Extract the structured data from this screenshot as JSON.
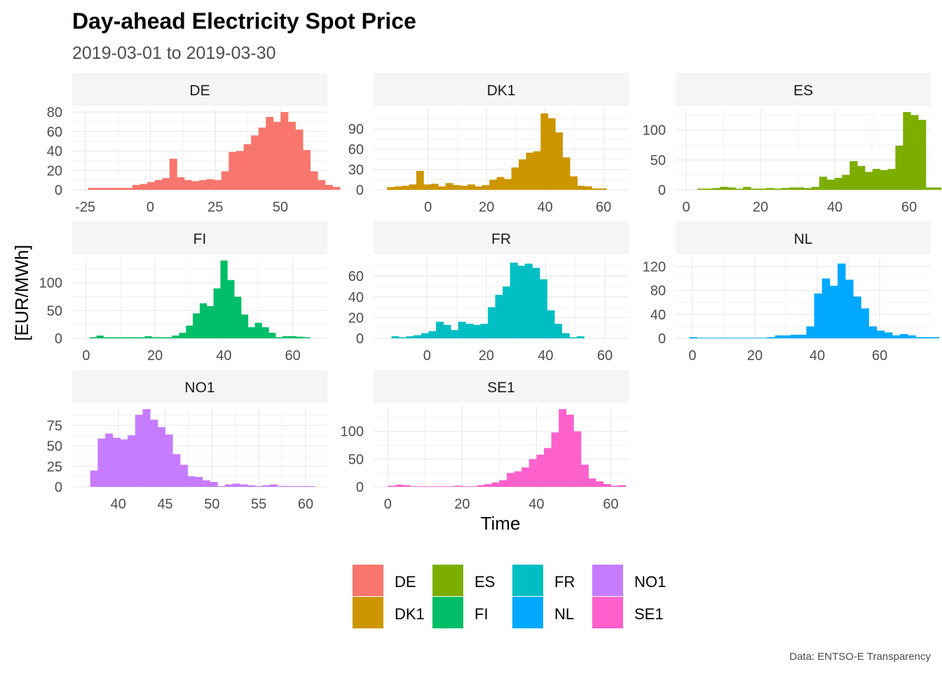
{
  "chart_data": {
    "type": "bar",
    "title": "Day-ahead Electricity Spot Price",
    "subtitle": "2019-03-01 to 2019-03-30",
    "xlabel": "Time",
    "ylabel": "[EUR/MWh]",
    "caption": "Data: ENTSO-E Transparency",
    "legend": {
      "position": "bottom",
      "columns": [
        [
          "DE",
          "DK1"
        ],
        [
          "ES",
          "FI"
        ],
        [
          "FR",
          "NL"
        ],
        [
          "NO1",
          "SE1"
        ]
      ]
    },
    "colors": {
      "DE": "#F8766D",
      "DK1": "#CD9600",
      "ES": "#7CAE00",
      "FI": "#00BE67",
      "FR": "#00BFC4",
      "NL": "#00A9FF",
      "NO1": "#C77CFF",
      "SE1": "#FF61CC"
    },
    "panels": [
      {
        "name": "DE",
        "xlim": [
          -26,
          64
        ],
        "ylim": [
          0,
          80
        ],
        "xticks": [
          -25,
          0,
          25,
          50
        ],
        "yticks": [
          0,
          20,
          40,
          60,
          80
        ],
        "bin_start": -24,
        "bin_width": 2.85,
        "counts": [
          2,
          2,
          2,
          2,
          2,
          2,
          5,
          6,
          8,
          10,
          12,
          32,
          13,
          10,
          9,
          10,
          11,
          10,
          19,
          39,
          40,
          47,
          56,
          64,
          75,
          70,
          80,
          70,
          62,
          41,
          19,
          10,
          5,
          3
        ]
      },
      {
        "name": "DK1",
        "xlim": [
          -15,
          65
        ],
        "ylim": [
          0,
          115
        ],
        "xticks": [
          0,
          20,
          40,
          60
        ],
        "yticks": [
          0,
          30,
          60,
          90
        ],
        "bin_start": -14,
        "bin_width": 2.5,
        "counts": [
          4,
          5,
          6,
          8,
          28,
          8,
          9,
          5,
          10,
          7,
          6,
          8,
          5,
          7,
          15,
          19,
          16,
          33,
          45,
          55,
          57,
          113,
          106,
          85,
          48,
          20,
          6,
          5,
          2,
          2
        ]
      },
      {
        "name": "ES",
        "xlim": [
          0,
          63
        ],
        "ylim": [
          0,
          130
        ],
        "xticks": [
          0,
          20,
          40,
          60
        ],
        "yticks": [
          0,
          50,
          100
        ],
        "bin_start": 3,
        "bin_width": 2.05,
        "counts": [
          2,
          2,
          3,
          5,
          4,
          2,
          5,
          2,
          2,
          3,
          2,
          3,
          4,
          4,
          3,
          5,
          22,
          17,
          20,
          25,
          48,
          40,
          30,
          35,
          33,
          35,
          74,
          130,
          125,
          117,
          4,
          4
        ]
      },
      {
        "name": "FI",
        "xlim": [
          -1,
          67
        ],
        "ylim": [
          0,
          140
        ],
        "xticks": [
          0,
          20,
          40,
          60
        ],
        "yticks": [
          0,
          50,
          100
        ],
        "bin_start": 1,
        "bin_width": 2.0,
        "counts": [
          2,
          5,
          2,
          2,
          2,
          2,
          2,
          2,
          4,
          2,
          2,
          2,
          5,
          10,
          23,
          45,
          63,
          58,
          90,
          140,
          105,
          75,
          43,
          20,
          28,
          20,
          10,
          2,
          4,
          4,
          3,
          2
        ]
      },
      {
        "name": "FR",
        "xlim": [
          -14.5,
          64.5
        ],
        "ylim": [
          0,
          75
        ],
        "xticks": [
          0,
          20,
          40,
          60
        ],
        "yticks": [
          0,
          20,
          40,
          60
        ],
        "bin_start": -12,
        "bin_width": 2.5,
        "counts": [
          2,
          1,
          2,
          3,
          5,
          7,
          16,
          13,
          8,
          16,
          14,
          13,
          14,
          30,
          42,
          50,
          73,
          70,
          72,
          68,
          57,
          27,
          14,
          5,
          1,
          2
        ]
      },
      {
        "name": "NL",
        "xlim": [
          -2,
          73
        ],
        "ylim": [
          0,
          130
        ],
        "xticks": [
          0,
          20,
          40,
          60
        ],
        "yticks": [
          0,
          40,
          80,
          120
        ],
        "bin_start": -1,
        "bin_width": 2.5,
        "counts": [
          2,
          1,
          1,
          1,
          1,
          1,
          1,
          1,
          1,
          1,
          2,
          5,
          5,
          6,
          6,
          20,
          75,
          100,
          88,
          125,
          98,
          70,
          50,
          20,
          13,
          10,
          5,
          7,
          5,
          2,
          2,
          2
        ]
      },
      {
        "name": "NO1",
        "xlim": [
          36.2,
          61.2
        ],
        "ylim": [
          0,
          95
        ],
        "xticks": [
          40,
          45,
          50,
          55,
          60
        ],
        "yticks": [
          0,
          25,
          50,
          75
        ],
        "bin_start": 37.0,
        "bin_width": 0.8,
        "counts": [
          20,
          59,
          65,
          60,
          58,
          63,
          88,
          95,
          82,
          73,
          64,
          40,
          27,
          13,
          12,
          8,
          6,
          1,
          3,
          4,
          3,
          2,
          1,
          2,
          3,
          1,
          1,
          1,
          1,
          1
        ]
      },
      {
        "name": "SE1",
        "xlim": [
          -1,
          62
        ],
        "ylim": [
          0,
          140
        ],
        "xticks": [
          0,
          20,
          40,
          60
        ],
        "yticks": [
          0,
          50,
          100
        ],
        "bin_start": 0,
        "bin_width": 2.0,
        "counts": [
          2,
          4,
          3,
          1,
          1,
          1,
          1,
          1,
          1,
          2,
          1,
          1,
          3,
          5,
          8,
          12,
          25,
          28,
          35,
          50,
          58,
          70,
          98,
          140,
          130,
          100,
          40,
          15,
          10,
          5,
          2,
          3
        ]
      }
    ]
  }
}
